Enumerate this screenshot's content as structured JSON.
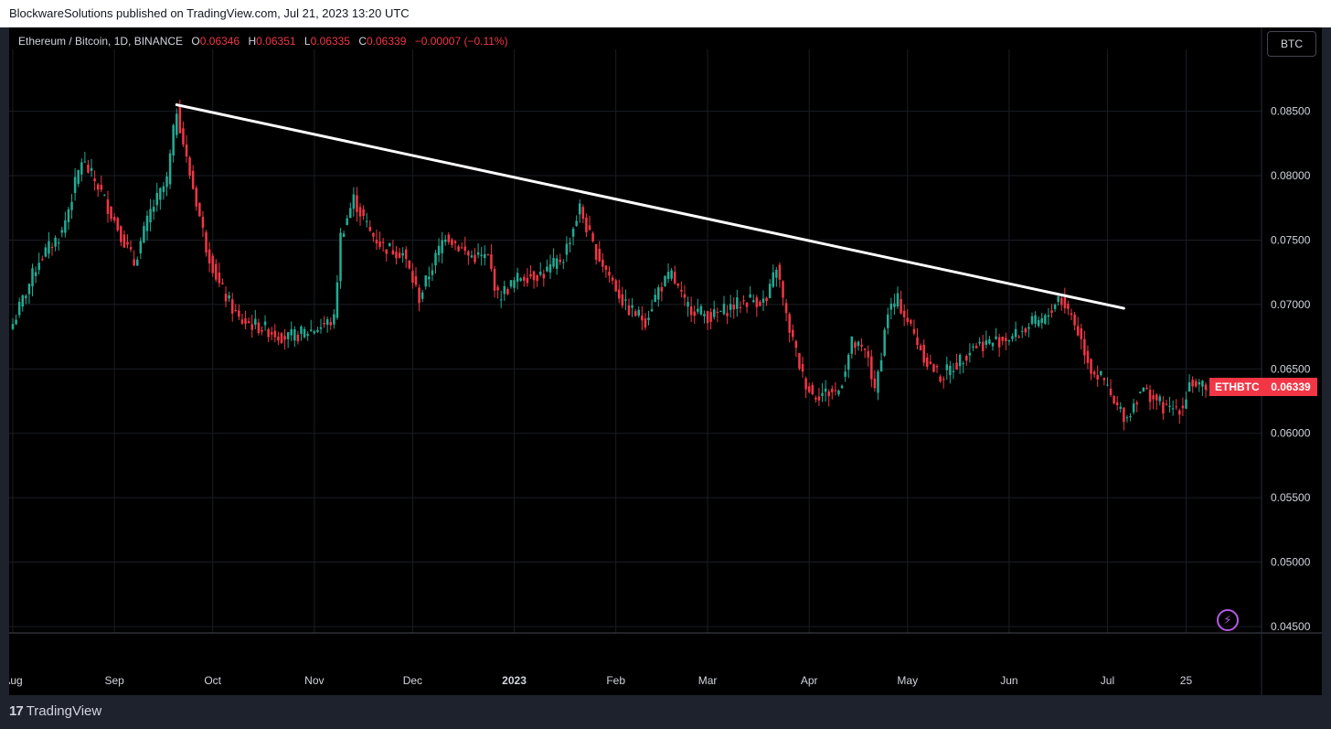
{
  "banner": {
    "text": "BlockwareSolutions published on TradingView.com, Jul 21, 2023 13:20 UTC"
  },
  "legend": {
    "symbol": "Ethereum / Bitcoin, 1D, BINANCE",
    "o_label": "O",
    "o_value": "0.06346",
    "h_label": "H",
    "h_value": "0.06351",
    "l_label": "L",
    "l_value": "0.06335",
    "c_label": "C",
    "c_value": "0.06339",
    "change": "−0.00007 (−0.11%)"
  },
  "currency_button": "BTC",
  "last_price": {
    "ticker": "ETHBTC",
    "value": "0.06339"
  },
  "footer": {
    "logo_mark": "17",
    "brand": "TradingView"
  },
  "colors": {
    "up": "#22ab94",
    "down": "#f23645",
    "trendline": "#ffffff",
    "background": "#000000",
    "grid": "#1a1d24",
    "text": "#d1d4dc"
  },
  "icons": {
    "alert": "lightning-bolt-icon"
  },
  "chart_data": {
    "type": "candlestick",
    "ylim": [
      0.0445,
      0.0898
    ],
    "yticks": [
      "0.08500",
      "0.08000",
      "0.07500",
      "0.07000",
      "0.06500",
      "0.06000",
      "0.05500",
      "0.05000",
      "0.04500"
    ],
    "xticks": [
      "Aug",
      "Sep",
      "Oct",
      "Nov",
      "Dec",
      "2023",
      "Feb",
      "Mar",
      "Apr",
      "May",
      "Jun",
      "Jul",
      "25"
    ],
    "xtick_days": [
      0,
      31,
      61,
      92,
      122,
      153,
      184,
      212,
      243,
      273,
      304,
      334,
      358
    ],
    "x_start": "2022-07-22",
    "x_end": "2023-07-21",
    "close_path": [
      [
        "2022-07-22",
        0.0685
      ],
      [
        "2022-07-30",
        0.0735
      ],
      [
        "2022-08-06",
        0.0756
      ],
      [
        "2022-08-12",
        0.0812
      ],
      [
        "2022-08-17",
        0.0792
      ],
      [
        "2022-08-23",
        0.076
      ],
      [
        "2022-08-28",
        0.0732
      ],
      [
        "2022-09-02",
        0.0772
      ],
      [
        "2022-09-07",
        0.0796
      ],
      [
        "2022-09-10",
        0.0852
      ],
      [
        "2022-09-13",
        0.0812
      ],
      [
        "2022-09-16",
        0.078
      ],
      [
        "2022-09-19",
        0.0745
      ],
      [
        "2022-09-23",
        0.0715
      ],
      [
        "2022-09-29",
        0.0688
      ],
      [
        "2022-10-06",
        0.0682
      ],
      [
        "2022-10-14",
        0.0674
      ],
      [
        "2022-10-22",
        0.0681
      ],
      [
        "2022-10-28",
        0.0688
      ],
      [
        "2022-10-30",
        0.0753
      ],
      [
        "2022-11-03",
        0.0782
      ],
      [
        "2022-11-08",
        0.0756
      ],
      [
        "2022-11-12",
        0.0745
      ],
      [
        "2022-11-18",
        0.074
      ],
      [
        "2022-11-23",
        0.0705
      ],
      [
        "2022-12-01",
        0.0755
      ],
      [
        "2022-12-08",
        0.0738
      ],
      [
        "2022-12-14",
        0.0736
      ],
      [
        "2022-12-17",
        0.0706
      ],
      [
        "2022-12-24",
        0.0722
      ],
      [
        "2022-12-31",
        0.0724
      ],
      [
        "2023-01-06",
        0.0737
      ],
      [
        "2023-01-11",
        0.0775
      ],
      [
        "2023-01-15",
        0.0745
      ],
      [
        "2023-01-21",
        0.0718
      ],
      [
        "2023-01-25",
        0.0698
      ],
      [
        "2023-01-31",
        0.0688
      ],
      [
        "2023-02-04",
        0.0712
      ],
      [
        "2023-02-08",
        0.0723
      ],
      [
        "2023-02-12",
        0.07
      ],
      [
        "2023-02-20",
        0.069
      ],
      [
        "2023-02-26",
        0.0698
      ],
      [
        "2023-03-04",
        0.0704
      ],
      [
        "2023-03-09",
        0.0702
      ],
      [
        "2023-03-12",
        0.073
      ],
      [
        "2023-03-15",
        0.069
      ],
      [
        "2023-03-20",
        0.0644
      ],
      [
        "2023-03-23",
        0.063
      ],
      [
        "2023-03-31",
        0.0633
      ],
      [
        "2023-04-04",
        0.067
      ],
      [
        "2023-04-09",
        0.066
      ],
      [
        "2023-04-11",
        0.063
      ],
      [
        "2023-04-15",
        0.0695
      ],
      [
        "2023-04-18",
        0.0703
      ],
      [
        "2023-04-22",
        0.0682
      ],
      [
        "2023-04-27",
        0.0655
      ],
      [
        "2023-05-01",
        0.0644
      ],
      [
        "2023-05-06",
        0.0654
      ],
      [
        "2023-05-11",
        0.0668
      ],
      [
        "2023-05-17",
        0.0671
      ],
      [
        "2023-05-24",
        0.0676
      ],
      [
        "2023-05-29",
        0.0685
      ],
      [
        "2023-06-02",
        0.0688
      ],
      [
        "2023-06-06",
        0.0706
      ],
      [
        "2023-06-10",
        0.0692
      ],
      [
        "2023-06-13",
        0.0672
      ],
      [
        "2023-06-16",
        0.065
      ],
      [
        "2023-06-20",
        0.064
      ],
      [
        "2023-06-23",
        0.0622
      ],
      [
        "2023-06-27",
        0.0612
      ],
      [
        "2023-07-01",
        0.0634
      ],
      [
        "2023-07-05",
        0.0628
      ],
      [
        "2023-07-09",
        0.0618
      ],
      [
        "2023-07-14",
        0.0621
      ],
      [
        "2023-07-16",
        0.064
      ],
      [
        "2023-07-21",
        0.06339
      ]
    ],
    "trendline": {
      "start": [
        "2022-09-10",
        0.0855
      ],
      "end": [
        "2023-06-26",
        0.0697
      ]
    },
    "last_close": 0.06339
  }
}
